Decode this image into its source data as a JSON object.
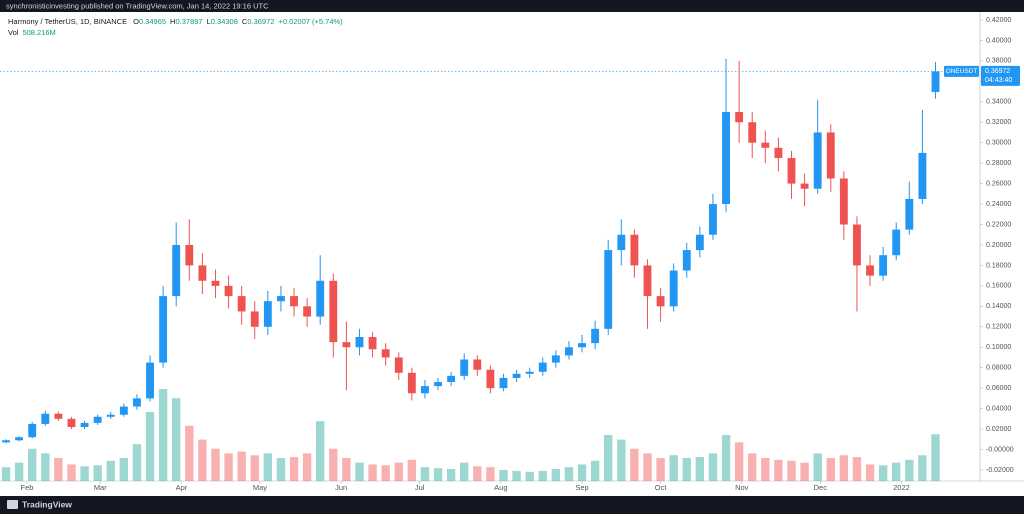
{
  "header": {
    "text": "synchronisticinvesting published on TradingView.com, Jan 14, 2022 19:16 UTC"
  },
  "footer": {
    "brand": "TradingView"
  },
  "chart_data": {
    "type": "candlestick",
    "legend": {
      "title": "Harmony / TetherUS, 1D, BINANCE",
      "ohlc": [
        {
          "key": "O",
          "value": "0.34965"
        },
        {
          "key": "H",
          "value": "0.37897"
        },
        {
          "key": "L",
          "value": "0.34308"
        },
        {
          "key": "C",
          "value": "0.36972"
        }
      ],
      "change": "+0.02007 (+5.74%)",
      "volume": {
        "key": "Vol",
        "value": "508.216M"
      }
    },
    "symbol": "ONEUSDT",
    "countdown": "04:43:40",
    "price_line": {
      "value": 0.36972,
      "label": "0.36972"
    },
    "up_color": "#2196f3",
    "down_color": "#ef5350",
    "volume_up_color": "#26a69a",
    "volume_down_color": "#ef5350",
    "x": [
      10,
      15,
      20,
      25,
      30,
      35,
      40,
      45,
      50,
      55,
      60,
      65,
      70,
      75,
      80,
      85,
      90,
      95,
      100,
      105,
      110,
      115,
      120,
      125,
      130,
      135,
      140,
      145,
      150,
      155,
      160,
      165,
      170,
      175,
      180,
      185,
      190,
      195,
      200,
      205,
      210,
      215,
      220,
      225,
      230,
      235,
      240,
      245,
      250,
      255,
      260,
      265,
      270,
      275,
      280,
      285,
      290,
      295,
      300,
      305,
      310,
      315,
      320,
      325,
      330,
      335,
      340,
      345,
      350,
      355,
      360,
      365
    ],
    "open": [
      0.007,
      0.009,
      0.012,
      0.025,
      0.035,
      0.03,
      0.022,
      0.026,
      0.032,
      0.034,
      0.042,
      0.05,
      0.085,
      0.15,
      0.2,
      0.18,
      0.165,
      0.16,
      0.15,
      0.135,
      0.12,
      0.145,
      0.15,
      0.14,
      0.13,
      0.165,
      0.105,
      0.1,
      0.11,
      0.098,
      0.09,
      0.075,
      0.055,
      0.062,
      0.066,
      0.072,
      0.088,
      0.078,
      0.06,
      0.07,
      0.074,
      0.076,
      0.085,
      0.092,
      0.1,
      0.104,
      0.118,
      0.195,
      0.21,
      0.18,
      0.15,
      0.14,
      0.175,
      0.195,
      0.21,
      0.24,
      0.33,
      0.32,
      0.3,
      0.295,
      0.285,
      0.26,
      0.255,
      0.31,
      0.265,
      0.22,
      0.18,
      0.17,
      0.19,
      0.215,
      0.245,
      0.34965
    ],
    "high": [
      0.01,
      0.013,
      0.027,
      0.038,
      0.037,
      0.032,
      0.028,
      0.034,
      0.037,
      0.045,
      0.054,
      0.092,
      0.16,
      0.222,
      0.225,
      0.192,
      0.176,
      0.17,
      0.16,
      0.145,
      0.155,
      0.16,
      0.158,
      0.148,
      0.19,
      0.172,
      0.125,
      0.118,
      0.115,
      0.104,
      0.095,
      0.08,
      0.068,
      0.07,
      0.076,
      0.094,
      0.092,
      0.082,
      0.074,
      0.078,
      0.08,
      0.09,
      0.097,
      0.106,
      0.112,
      0.126,
      0.205,
      0.225,
      0.215,
      0.186,
      0.158,
      0.182,
      0.202,
      0.218,
      0.25,
      0.382,
      0.38,
      0.33,
      0.312,
      0.305,
      0.292,
      0.27,
      0.342,
      0.318,
      0.272,
      0.228,
      0.19,
      0.198,
      0.222,
      0.262,
      0.332,
      0.37897
    ],
    "low": [
      0.006,
      0.008,
      0.011,
      0.023,
      0.028,
      0.02,
      0.02,
      0.024,
      0.03,
      0.032,
      0.039,
      0.047,
      0.08,
      0.14,
      0.165,
      0.152,
      0.148,
      0.138,
      0.122,
      0.108,
      0.112,
      0.135,
      0.13,
      0.12,
      0.122,
      0.09,
      0.058,
      0.092,
      0.09,
      0.082,
      0.068,
      0.048,
      0.05,
      0.058,
      0.062,
      0.068,
      0.072,
      0.055,
      0.057,
      0.066,
      0.07,
      0.072,
      0.08,
      0.088,
      0.095,
      0.098,
      0.112,
      0.18,
      0.168,
      0.118,
      0.125,
      0.135,
      0.168,
      0.188,
      0.205,
      0.232,
      0.3,
      0.285,
      0.28,
      0.272,
      0.245,
      0.238,
      0.25,
      0.252,
      0.205,
      0.135,
      0.16,
      0.165,
      0.185,
      0.21,
      0.24,
      0.34308
    ],
    "close": [
      0.009,
      0.012,
      0.025,
      0.035,
      0.03,
      0.022,
      0.026,
      0.032,
      0.034,
      0.042,
      0.05,
      0.085,
      0.15,
      0.2,
      0.18,
      0.165,
      0.16,
      0.15,
      0.135,
      0.12,
      0.145,
      0.15,
      0.14,
      0.13,
      0.165,
      0.105,
      0.1,
      0.11,
      0.098,
      0.09,
      0.075,
      0.055,
      0.062,
      0.066,
      0.072,
      0.088,
      0.078,
      0.06,
      0.07,
      0.074,
      0.076,
      0.085,
      0.092,
      0.1,
      0.104,
      0.118,
      0.195,
      0.21,
      0.18,
      0.15,
      0.14,
      0.175,
      0.195,
      0.21,
      0.24,
      0.33,
      0.32,
      0.3,
      0.295,
      0.285,
      0.26,
      0.255,
      0.31,
      0.265,
      0.22,
      0.18,
      0.17,
      0.19,
      0.215,
      0.245,
      0.29,
      0.36972
    ],
    "volume": [
      150,
      200,
      350,
      300,
      250,
      180,
      160,
      170,
      220,
      250,
      400,
      750,
      1000,
      900,
      600,
      450,
      350,
      300,
      320,
      280,
      300,
      250,
      260,
      300,
      650,
      350,
      250,
      200,
      180,
      170,
      200,
      230,
      150,
      140,
      130,
      200,
      160,
      150,
      120,
      110,
      100,
      110,
      130,
      150,
      180,
      220,
      500,
      450,
      350,
      300,
      250,
      280,
      250,
      260,
      300,
      500,
      420,
      300,
      250,
      230,
      220,
      200,
      300,
      250,
      280,
      260,
      180,
      170,
      200,
      230,
      280,
      508.216
    ],
    "xlim": [
      7.7,
      382
    ],
    "xticks": [
      {
        "value": 18,
        "label": "Feb"
      },
      {
        "value": 46,
        "label": "Mar"
      },
      {
        "value": 77,
        "label": "Apr"
      },
      {
        "value": 107,
        "label": "May"
      },
      {
        "value": 138,
        "label": "Jun"
      },
      {
        "value": 168,
        "label": "Jul"
      },
      {
        "value": 199,
        "label": "Aug"
      },
      {
        "value": 230,
        "label": "Sep"
      },
      {
        "value": 260,
        "label": "Oct"
      },
      {
        "value": 291,
        "label": "Nov"
      },
      {
        "value": 321,
        "label": "Dec"
      },
      {
        "value": 352,
        "label": "2022"
      }
    ],
    "ylim": [
      -0.0308,
      0.4278
    ],
    "yticks": [
      {
        "value": 0.42,
        "label": "0.42000"
      },
      {
        "value": 0.4,
        "label": "0.40000"
      },
      {
        "value": 0.38,
        "label": "0.38000"
      },
      {
        "value": 0.36,
        "label": "0.36000"
      },
      {
        "value": 0.34,
        "label": "0.34000"
      },
      {
        "value": 0.32,
        "label": "0.32000"
      },
      {
        "value": 0.3,
        "label": "0.30000"
      },
      {
        "value": 0.28,
        "label": "0.28000"
      },
      {
        "value": 0.26,
        "label": "0.26000"
      },
      {
        "value": 0.24,
        "label": "0.24000"
      },
      {
        "value": 0.22,
        "label": "0.22000"
      },
      {
        "value": 0.2,
        "label": "0.20000"
      },
      {
        "value": 0.18,
        "label": "0.18000"
      },
      {
        "value": 0.16,
        "label": "0.16000"
      },
      {
        "value": 0.14,
        "label": "0.14000"
      },
      {
        "value": 0.12,
        "label": "0.12000"
      },
      {
        "value": 0.1,
        "label": "0.10000"
      },
      {
        "value": 0.08,
        "label": "0.08000"
      },
      {
        "value": 0.06,
        "label": "0.06000"
      },
      {
        "value": 0.04,
        "label": "0.04000"
      },
      {
        "value": 0.02,
        "label": "0.02000"
      },
      {
        "value": 0,
        "label": "-0.00000"
      },
      {
        "value": -0.02,
        "label": "-0.02000"
      }
    ],
    "grid": false
  }
}
